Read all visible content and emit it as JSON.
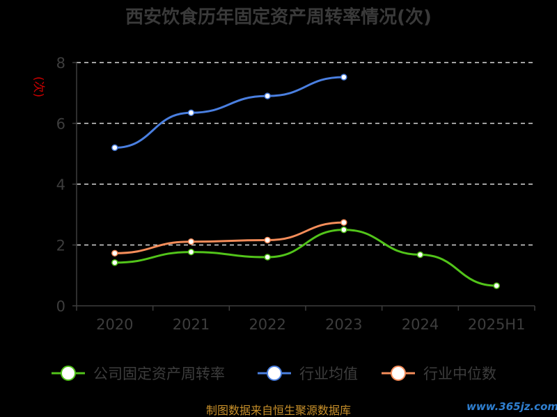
{
  "chart_data": {
    "type": "line",
    "title": "西安饮食历年固定资产周转率情况(次)",
    "ylabel": "(次)",
    "categories": [
      "2020",
      "2021",
      "2022",
      "2023",
      "2024",
      "2025H1"
    ],
    "ylim": [
      0,
      8
    ],
    "yticks": [
      0,
      2,
      4,
      6,
      8
    ],
    "grid": true,
    "legend_position": "bottom",
    "series": [
      {
        "name": "公司固定资产周转率",
        "color": "#52c41a",
        "values": [
          1.42,
          1.77,
          1.6,
          2.5,
          1.68,
          0.66
        ]
      },
      {
        "name": "行业均值",
        "color": "#4a7fe0",
        "values": [
          5.2,
          6.35,
          6.9,
          7.52,
          null,
          null
        ]
      },
      {
        "name": "行业中位数",
        "color": "#f58d5a",
        "values": [
          1.73,
          2.11,
          2.16,
          2.74,
          null,
          null
        ]
      }
    ]
  },
  "footer": "制图数据来自恒生聚源数据库",
  "watermark": "www.365jz.com"
}
